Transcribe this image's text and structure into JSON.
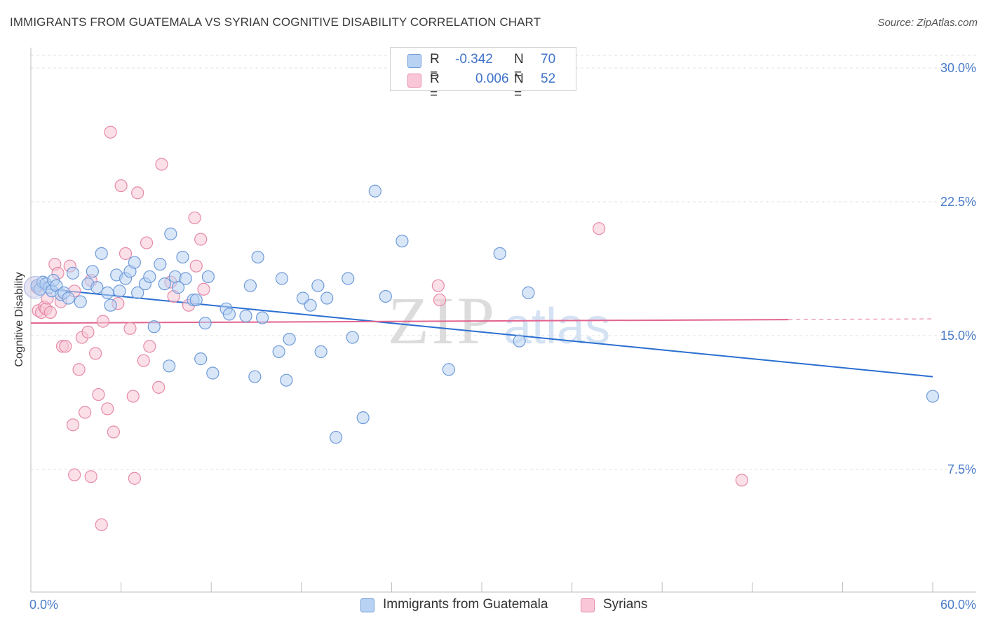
{
  "header": {
    "title": "IMMIGRANTS FROM GUATEMALA VS SYRIAN COGNITIVE DISABILITY CORRELATION CHART",
    "source": "Source: ZipAtlas.com"
  },
  "watermark": {
    "zip": "ZIP",
    "atlas": "atlas"
  },
  "legend_top": {
    "rows": [
      {
        "r_label": "R =",
        "r_value": "-0.342",
        "n_label": "N =",
        "n_value": "70"
      },
      {
        "r_label": "R =",
        "r_value": "0.006",
        "n_label": "N =",
        "n_value": "52"
      }
    ]
  },
  "legend_bottom": {
    "items": [
      {
        "label": "Immigrants from Guatemala"
      },
      {
        "label": "Syrians"
      }
    ]
  },
  "colors": {
    "series1_fill": "#b8d2f3",
    "series1_stroke": "#6f9bd9",
    "series1_line": "#2a6fd1",
    "series2_fill": "#f8c6d6",
    "series2_stroke": "#e78aa8",
    "series2_line": "#e2648f",
    "grid": "#e0e0e0",
    "axis": "#bdbdbd",
    "tick_label": "#4a7cc9"
  },
  "chart_data": {
    "type": "scatter",
    "title": "IMMIGRANTS FROM GUATEMALA VS SYRIAN COGNITIVE DISABILITY CORRELATION CHART",
    "xlabel": "",
    "ylabel": "Cognitive Disability",
    "xlim": [
      0,
      60
    ],
    "ylim": [
      0,
      32
    ],
    "x_ticks": [
      "0.0%",
      "60.0%"
    ],
    "y_ticks": [
      {
        "value": 30.0,
        "label": "30.0%"
      },
      {
        "value": 22.5,
        "label": "22.5%"
      },
      {
        "value": 15.0,
        "label": "15.0%"
      },
      {
        "value": 7.5,
        "label": "7.5%"
      }
    ],
    "grid": true,
    "legend_position": "bottom",
    "series": [
      {
        "name": "Immigrants from Guatemala",
        "r": -0.342,
        "n": 70,
        "trend": {
          "x": [
            0,
            60
          ],
          "y": [
            17.7,
            12.7
          ],
          "dashed_from": null
        },
        "points": [
          [
            0.4,
            17.8
          ],
          [
            0.6,
            17.6
          ],
          [
            0.8,
            18.0
          ],
          [
            1.0,
            17.9
          ],
          [
            1.2,
            17.7
          ],
          [
            1.4,
            17.5
          ],
          [
            1.5,
            18.1
          ],
          [
            1.7,
            17.8
          ],
          [
            2.0,
            17.3
          ],
          [
            2.2,
            17.4
          ],
          [
            2.5,
            17.1
          ],
          [
            2.8,
            18.5
          ],
          [
            3.3,
            16.9
          ],
          [
            3.8,
            17.9
          ],
          [
            4.1,
            18.6
          ],
          [
            4.4,
            17.7
          ],
          [
            4.7,
            19.6
          ],
          [
            5.1,
            17.4
          ],
          [
            5.3,
            16.7
          ],
          [
            5.7,
            18.4
          ],
          [
            5.9,
            17.5
          ],
          [
            6.3,
            18.2
          ],
          [
            6.6,
            18.6
          ],
          [
            6.9,
            19.1
          ],
          [
            7.1,
            17.4
          ],
          [
            7.6,
            17.9
          ],
          [
            7.9,
            18.3
          ],
          [
            8.2,
            15.5
          ],
          [
            8.6,
            19.0
          ],
          [
            8.9,
            17.9
          ],
          [
            9.2,
            13.3
          ],
          [
            9.3,
            20.7
          ],
          [
            9.6,
            18.3
          ],
          [
            9.8,
            17.7
          ],
          [
            10.1,
            19.4
          ],
          [
            10.3,
            18.2
          ],
          [
            10.8,
            17.0
          ],
          [
            11.0,
            17.0
          ],
          [
            11.3,
            13.7
          ],
          [
            11.6,
            15.7
          ],
          [
            11.8,
            18.3
          ],
          [
            12.1,
            12.9
          ],
          [
            13.0,
            16.5
          ],
          [
            13.2,
            16.2
          ],
          [
            14.3,
            16.1
          ],
          [
            14.6,
            17.8
          ],
          [
            14.9,
            12.7
          ],
          [
            15.1,
            19.4
          ],
          [
            15.4,
            16.0
          ],
          [
            16.5,
            14.1
          ],
          [
            16.7,
            18.2
          ],
          [
            17.0,
            12.5
          ],
          [
            17.2,
            14.8
          ],
          [
            18.1,
            17.1
          ],
          [
            18.6,
            16.7
          ],
          [
            19.1,
            17.8
          ],
          [
            19.3,
            14.1
          ],
          [
            19.7,
            17.1
          ],
          [
            20.3,
            9.3
          ],
          [
            21.1,
            18.2
          ],
          [
            21.4,
            14.9
          ],
          [
            22.1,
            10.4
          ],
          [
            22.9,
            23.1
          ],
          [
            23.6,
            17.2
          ],
          [
            24.7,
            20.3
          ],
          [
            27.8,
            13.1
          ],
          [
            31.2,
            19.6
          ],
          [
            32.5,
            14.7
          ],
          [
            33.1,
            17.4
          ],
          [
            60.0,
            11.6
          ]
        ]
      },
      {
        "name": "Syrians",
        "r": 0.006,
        "n": 52,
        "trend": {
          "x": [
            0,
            50.4
          ],
          "y": [
            15.7,
            15.9
          ],
          "dashed_from": 50.4,
          "dashed_to": 60
        },
        "points": [
          [
            0.4,
            17.7
          ],
          [
            0.5,
            16.4
          ],
          [
            0.7,
            16.3
          ],
          [
            0.9,
            16.6
          ],
          [
            1.0,
            16.5
          ],
          [
            1.1,
            17.1
          ],
          [
            1.3,
            16.3
          ],
          [
            1.6,
            19.0
          ],
          [
            1.8,
            18.5
          ],
          [
            2.0,
            16.9
          ],
          [
            2.1,
            14.4
          ],
          [
            2.3,
            14.4
          ],
          [
            2.6,
            18.9
          ],
          [
            2.8,
            10.0
          ],
          [
            2.9,
            17.5
          ],
          [
            3.2,
            13.1
          ],
          [
            3.4,
            14.9
          ],
          [
            3.6,
            10.7
          ],
          [
            3.8,
            15.2
          ],
          [
            4.0,
            18.1
          ],
          [
            4.3,
            14.0
          ],
          [
            4.5,
            11.7
          ],
          [
            4.8,
            15.8
          ],
          [
            5.1,
            10.9
          ],
          [
            5.3,
            26.4
          ],
          [
            5.5,
            9.6
          ],
          [
            5.8,
            16.8
          ],
          [
            6.0,
            23.4
          ],
          [
            6.3,
            19.6
          ],
          [
            6.6,
            15.4
          ],
          [
            6.8,
            11.6
          ],
          [
            7.1,
            23.0
          ],
          [
            7.5,
            13.6
          ],
          [
            7.7,
            20.2
          ],
          [
            7.9,
            14.4
          ],
          [
            8.5,
            12.1
          ],
          [
            8.7,
            24.6
          ],
          [
            9.3,
            18.0
          ],
          [
            9.5,
            17.2
          ],
          [
            10.5,
            16.7
          ],
          [
            10.9,
            21.6
          ],
          [
            11.0,
            18.9
          ],
          [
            11.3,
            20.4
          ],
          [
            11.5,
            17.6
          ],
          [
            2.9,
            7.2
          ],
          [
            4.0,
            7.1
          ],
          [
            6.9,
            7.0
          ],
          [
            4.7,
            4.4
          ],
          [
            27.1,
            17.8
          ],
          [
            27.2,
            17.0
          ],
          [
            37.8,
            21.0
          ],
          [
            47.3,
            6.9
          ]
        ]
      }
    ]
  }
}
